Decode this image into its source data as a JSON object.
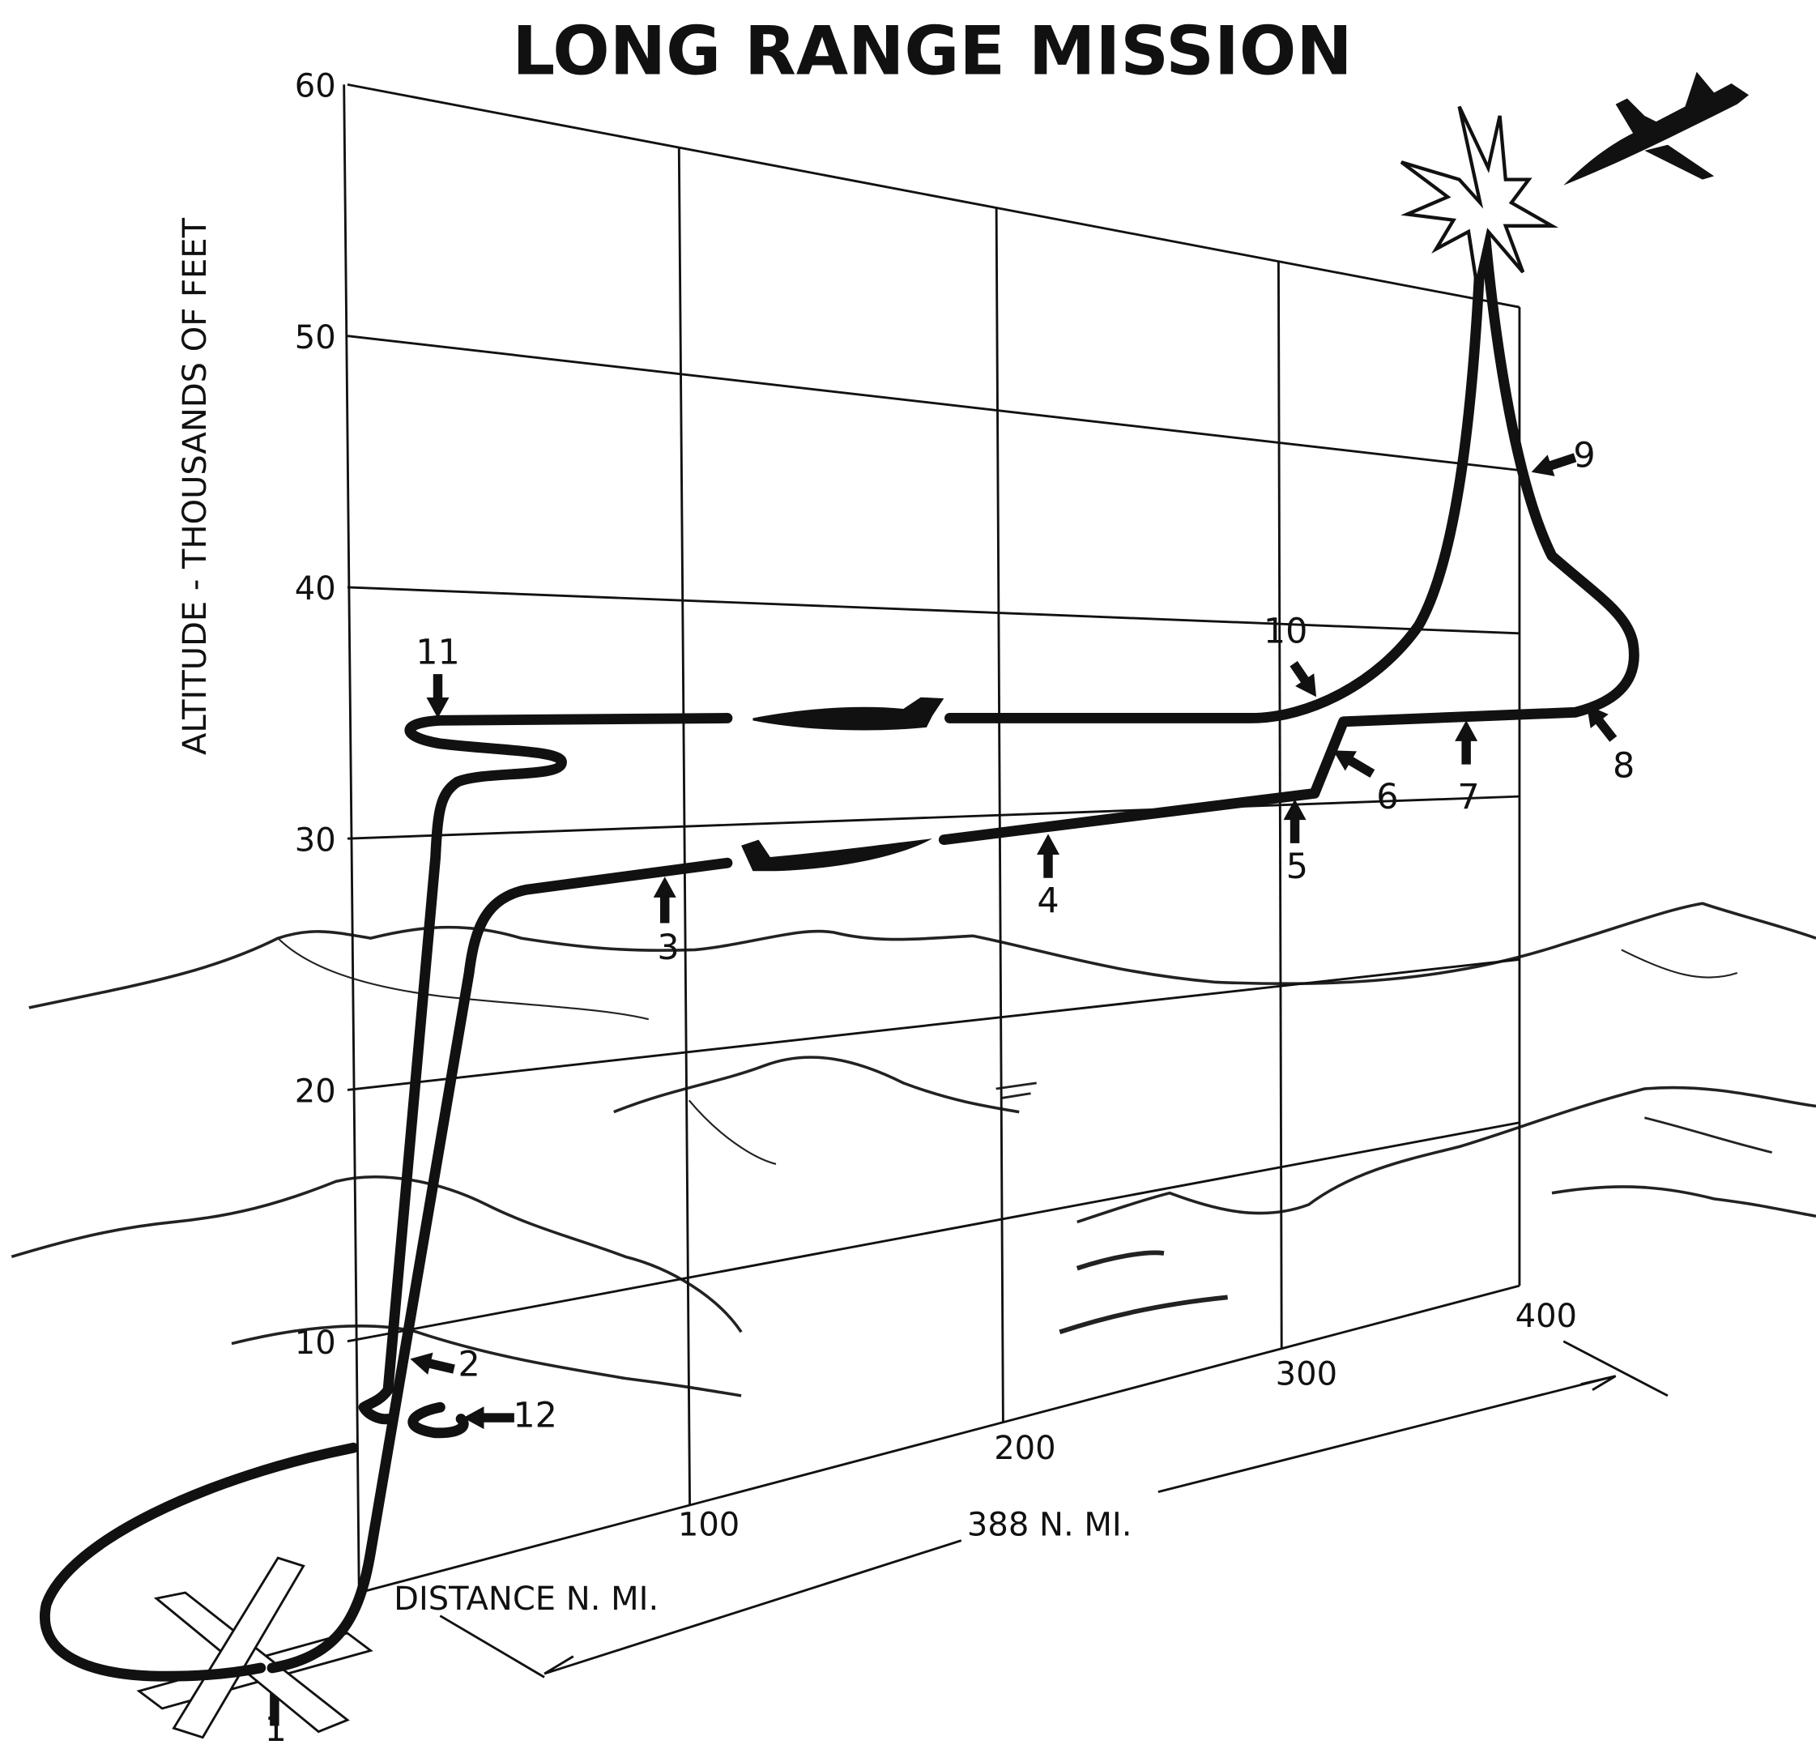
{
  "title": "LONG RANGE MISSION",
  "y_axis": {
    "label": "ALTITUDE - THOUSANDS OF FEET",
    "ticks": [
      60,
      50,
      40,
      30,
      20,
      10
    ]
  },
  "x_axis": {
    "label": "DISTANCE N. MI.",
    "ticks": [
      100,
      200,
      300,
      400
    ]
  },
  "range_label": "388 N. MI.",
  "markers": [
    {
      "label": "1"
    },
    {
      "label": "2"
    },
    {
      "label": "3"
    },
    {
      "label": "4"
    },
    {
      "label": "5"
    },
    {
      "label": "6"
    },
    {
      "label": "7"
    },
    {
      "label": "8"
    },
    {
      "label": "9"
    },
    {
      "label": "10"
    },
    {
      "label": "11"
    },
    {
      "label": "12"
    }
  ]
}
